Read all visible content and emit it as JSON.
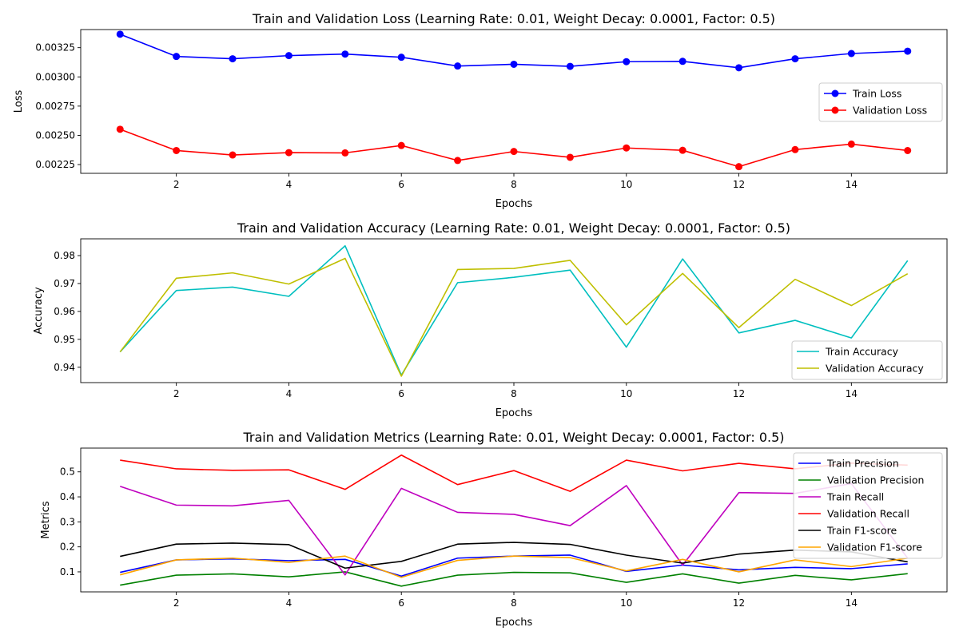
{
  "chart_data": [
    {
      "type": "line",
      "title": "Train and Validation Loss (Learning Rate: 0.01, Weight Decay: 0.0001, Factor: 0.5)",
      "xlabel": "Epochs",
      "ylabel": "Loss",
      "x": [
        1,
        2,
        3,
        4,
        5,
        6,
        7,
        8,
        9,
        10,
        11,
        12,
        13,
        14,
        15
      ],
      "xlim": [
        0.3,
        15.7
      ],
      "ylim": [
        0.002175,
        0.003405
      ],
      "xticks": [
        2,
        4,
        6,
        8,
        10,
        12,
        14
      ],
      "xtick_labels": [
        "2",
        "4",
        "6",
        "8",
        "10",
        "12",
        "14"
      ],
      "yticks": [
        0.00225,
        0.0025,
        0.00275,
        0.003,
        0.00325
      ],
      "ytick_labels": [
        "0.00225",
        "0.00250",
        "0.00275",
        "0.00300",
        "0.00325"
      ],
      "grid": false,
      "legend_position": "center-right",
      "series": [
        {
          "name": "Train Loss",
          "color": "#0000ff",
          "marker": "circle",
          "values": [
            0.003365,
            0.003175,
            0.003155,
            0.003182,
            0.003195,
            0.003168,
            0.003093,
            0.003108,
            0.00309,
            0.00313,
            0.003133,
            0.003078,
            0.003155,
            0.0032,
            0.00322
          ]
        },
        {
          "name": "Validation Loss",
          "color": "#ff0000",
          "marker": "circle",
          "values": [
            0.002552,
            0.00237,
            0.002332,
            0.002352,
            0.00235,
            0.002413,
            0.002285,
            0.002362,
            0.002312,
            0.002392,
            0.002372,
            0.002232,
            0.002378,
            0.002425,
            0.00237
          ]
        }
      ]
    },
    {
      "type": "line",
      "title": "Train and Validation Accuracy (Learning Rate: 0.01, Weight Decay: 0.0001, Factor: 0.5)",
      "xlabel": "Epochs",
      "ylabel": "Accuracy",
      "x": [
        1,
        2,
        3,
        4,
        5,
        6,
        7,
        8,
        9,
        10,
        11,
        12,
        13,
        14,
        15
      ],
      "xlim": [
        0.3,
        15.7
      ],
      "ylim": [
        0.9345,
        0.986
      ],
      "xticks": [
        2,
        4,
        6,
        8,
        10,
        12,
        14
      ],
      "xtick_labels": [
        "2",
        "4",
        "6",
        "8",
        "10",
        "12",
        "14"
      ],
      "yticks": [
        0.94,
        0.95,
        0.96,
        0.97,
        0.98
      ],
      "ytick_labels": [
        "0.94",
        "0.95",
        "0.96",
        "0.97",
        "0.98"
      ],
      "grid": false,
      "legend_position": "lower-right",
      "series": [
        {
          "name": "Train Accuracy",
          "color": "#00bfbf",
          "values": [
            0.9455,
            0.9675,
            0.9687,
            0.9654,
            0.9835,
            0.9372,
            0.9703,
            0.9722,
            0.9748,
            0.9472,
            0.9788,
            0.9523,
            0.9568,
            0.9505,
            0.9782
          ]
        },
        {
          "name": "Validation Accuracy",
          "color": "#bfbf00",
          "values": [
            0.9455,
            0.9719,
            0.9738,
            0.9698,
            0.979,
            0.9368,
            0.975,
            0.9754,
            0.9783,
            0.9552,
            0.9736,
            0.9542,
            0.9715,
            0.9621,
            0.9735
          ]
        }
      ]
    },
    {
      "type": "line",
      "title": "Train and Validation Metrics (Learning Rate: 0.01, Weight Decay: 0.0001, Factor: 0.5)",
      "xlabel": "Epochs",
      "ylabel": "Metrics",
      "x": [
        1,
        2,
        3,
        4,
        5,
        6,
        7,
        8,
        9,
        10,
        11,
        12,
        13,
        14,
        15
      ],
      "xlim": [
        0.3,
        15.7
      ],
      "ylim": [
        0.02,
        0.595
      ],
      "xticks": [
        2,
        4,
        6,
        8,
        10,
        12,
        14
      ],
      "xtick_labels": [
        "2",
        "4",
        "6",
        "8",
        "10",
        "12",
        "14"
      ],
      "yticks": [
        0.1,
        0.2,
        0.3,
        0.4,
        0.5
      ],
      "ytick_labels": [
        "0.1",
        "0.2",
        "0.3",
        "0.4",
        "0.5"
      ],
      "grid": false,
      "legend_position": "upper-right",
      "series": [
        {
          "name": "Train Precision",
          "color": "#0000ff",
          "values": [
            0.098,
            0.148,
            0.152,
            0.145,
            0.15,
            0.083,
            0.155,
            0.163,
            0.167,
            0.102,
            0.127,
            0.108,
            0.118,
            0.113,
            0.132
          ]
        },
        {
          "name": "Validation Precision",
          "color": "#008000",
          "values": [
            0.047,
            0.087,
            0.092,
            0.08,
            0.1,
            0.043,
            0.087,
            0.098,
            0.096,
            0.058,
            0.092,
            0.055,
            0.086,
            0.068,
            0.093
          ]
        },
        {
          "name": "Train Recall",
          "color": "#bf00bf",
          "values": [
            0.442,
            0.367,
            0.364,
            0.386,
            0.088,
            0.434,
            0.338,
            0.33,
            0.285,
            0.445,
            0.127,
            0.417,
            0.414,
            0.453,
            0.155
          ]
        },
        {
          "name": "Validation Recall",
          "color": "#ff0000",
          "values": [
            0.547,
            0.512,
            0.506,
            0.508,
            0.43,
            0.567,
            0.449,
            0.505,
            0.422,
            0.547,
            0.504,
            0.534,
            0.512,
            0.535,
            0.527
          ]
        },
        {
          "name": "Train F1-score",
          "color": "#000000",
          "values": [
            0.162,
            0.211,
            0.215,
            0.209,
            0.115,
            0.142,
            0.211,
            0.218,
            0.21,
            0.167,
            0.135,
            0.171,
            0.187,
            0.18,
            0.14
          ]
        },
        {
          "name": "Validation F1-score",
          "color": "#ffa500",
          "values": [
            0.088,
            0.148,
            0.155,
            0.138,
            0.163,
            0.078,
            0.146,
            0.163,
            0.157,
            0.104,
            0.15,
            0.1,
            0.148,
            0.121,
            0.155
          ]
        }
      ]
    }
  ]
}
